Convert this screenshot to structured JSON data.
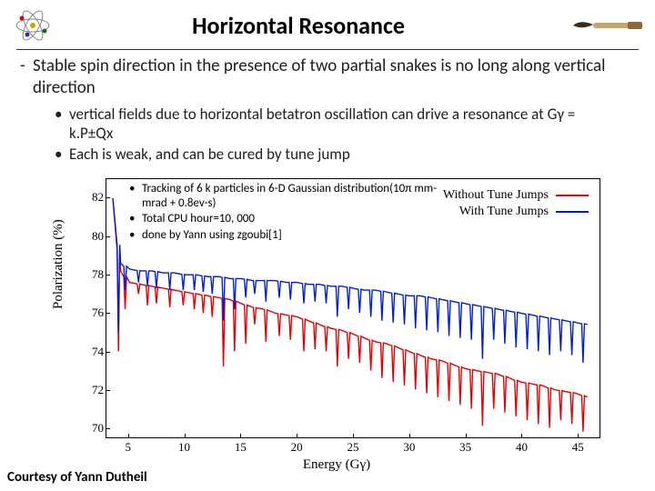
{
  "title": "Horizontal Resonance",
  "main_bullet": "Stable spin direction in the presence of two partial snakes is no long along vertical direction",
  "sub_bullets": [
    "vertical fields due to horizontal betatron oscillation can drive a resonance at Gγ = k.P±Qx",
    "Each is weak, and can be cured by tune jump"
  ],
  "notes": [
    "Tracking of 6 k particles in 6-D Gaussian distribution(10π mm-mrad + 0.8ev-s)",
    "Total CPU hour=10, 000",
    "done by Yann using zgoubi[1]"
  ],
  "courtesy": "Courtesy of Yann Dutheil",
  "chart": {
    "type": "line",
    "background_color": "#ffffff",
    "border_color": "#000000",
    "xlabel": "Energy (Gγ)",
    "ylabel": "Polarization (%)",
    "xlim": [
      3,
      47
    ],
    "ylim": [
      69.5,
      83
    ],
    "xticks": [
      5,
      10,
      15,
      20,
      25,
      30,
      35,
      40,
      45
    ],
    "yticks": [
      70,
      72,
      74,
      76,
      78,
      80,
      82
    ],
    "label_fontsize": 15,
    "tick_fontsize": 13,
    "font_family": "Times New Roman",
    "legend": {
      "position": "top-right",
      "items": [
        {
          "label": "Without Tune Jumps",
          "color": "#e60000"
        },
        {
          "label": "With Tune Jumps",
          "color": "#0020d0"
        }
      ]
    },
    "series": [
      {
        "name": "without",
        "color": "#e60000",
        "line_width": 1.4,
        "baseline": [
          [
            3.5,
            82.0
          ],
          [
            4.2,
            78.2
          ],
          [
            5.0,
            77.6
          ],
          [
            6.0,
            77.5
          ],
          [
            7.0,
            77.4
          ],
          [
            8.0,
            77.3
          ],
          [
            9.0,
            77.2
          ],
          [
            10.0,
            77.1
          ],
          [
            11.0,
            77.0
          ],
          [
            12.0,
            76.9
          ],
          [
            13.0,
            76.8
          ],
          [
            14.0,
            76.7
          ],
          [
            15.0,
            76.5
          ],
          [
            16.0,
            76.3
          ],
          [
            17.0,
            76.2
          ],
          [
            18.0,
            76.0
          ],
          [
            19.0,
            75.9
          ],
          [
            20.0,
            75.8
          ],
          [
            21.0,
            75.6
          ],
          [
            22.0,
            75.4
          ],
          [
            23.0,
            75.2
          ],
          [
            24.0,
            75.1
          ],
          [
            25.0,
            74.9
          ],
          [
            26.0,
            74.7
          ],
          [
            27.0,
            74.5
          ],
          [
            28.0,
            74.4
          ],
          [
            29.0,
            74.2
          ],
          [
            30.0,
            74.0
          ],
          [
            31.0,
            73.8
          ],
          [
            32.0,
            73.6
          ],
          [
            33.0,
            73.5
          ],
          [
            34.0,
            73.3
          ],
          [
            35.0,
            73.1
          ],
          [
            36.0,
            73.0
          ],
          [
            37.0,
            72.9
          ],
          [
            38.0,
            72.8
          ],
          [
            39.0,
            72.6
          ],
          [
            40.0,
            72.4
          ],
          [
            41.0,
            72.3
          ],
          [
            42.0,
            72.2
          ],
          [
            43.0,
            72.0
          ],
          [
            44.0,
            71.9
          ],
          [
            45.0,
            71.8
          ],
          [
            46.0,
            71.6
          ]
        ],
        "dips": [
          [
            4.0,
            74.0
          ],
          [
            4.6,
            76.2
          ],
          [
            5.8,
            77.0
          ],
          [
            6.6,
            76.4
          ],
          [
            7.4,
            76.5
          ],
          [
            8.6,
            76.3
          ],
          [
            9.8,
            76.4
          ],
          [
            10.8,
            76.2
          ],
          [
            11.6,
            76.0
          ],
          [
            12.4,
            75.8
          ],
          [
            13.4,
            73.2
          ],
          [
            14.4,
            74.0
          ],
          [
            15.4,
            74.4
          ],
          [
            16.2,
            75.4
          ],
          [
            17.2,
            74.5
          ],
          [
            18.4,
            74.8
          ],
          [
            19.4,
            74.6
          ],
          [
            20.6,
            74.0
          ],
          [
            21.6,
            74.1
          ],
          [
            22.6,
            74.0
          ],
          [
            23.6,
            73.2
          ],
          [
            24.6,
            73.6
          ],
          [
            25.6,
            73.4
          ],
          [
            26.6,
            73.0
          ],
          [
            27.6,
            72.6
          ],
          [
            28.6,
            72.4
          ],
          [
            29.6,
            72.2
          ],
          [
            30.6,
            72.0
          ],
          [
            31.6,
            71.8
          ],
          [
            32.6,
            71.6
          ],
          [
            33.6,
            71.4
          ],
          [
            34.6,
            71.2
          ],
          [
            35.6,
            71.0
          ],
          [
            36.6,
            70.1
          ],
          [
            37.6,
            71.0
          ],
          [
            38.6,
            70.8
          ],
          [
            39.6,
            70.6
          ],
          [
            40.6,
            70.4
          ],
          [
            41.6,
            70.2
          ],
          [
            42.6,
            70.0
          ],
          [
            43.6,
            70.4
          ],
          [
            44.6,
            70.2
          ],
          [
            45.6,
            69.8
          ]
        ]
      },
      {
        "name": "with",
        "color": "#0020d0",
        "line_width": 1.4,
        "baseline": [
          [
            3.5,
            82.0
          ],
          [
            4.2,
            78.6
          ],
          [
            5.0,
            78.3
          ],
          [
            6.0,
            78.2
          ],
          [
            7.0,
            78.2
          ],
          [
            8.0,
            78.1
          ],
          [
            9.0,
            78.1
          ],
          [
            10.0,
            78.0
          ],
          [
            11.0,
            78.0
          ],
          [
            12.0,
            77.9
          ],
          [
            13.0,
            77.9
          ],
          [
            14.0,
            77.8
          ],
          [
            15.0,
            77.8
          ],
          [
            16.0,
            77.7
          ],
          [
            17.0,
            77.7
          ],
          [
            18.0,
            77.7
          ],
          [
            19.0,
            77.6
          ],
          [
            20.0,
            77.6
          ],
          [
            21.0,
            77.5
          ],
          [
            22.0,
            77.5
          ],
          [
            23.0,
            77.4
          ],
          [
            24.0,
            77.4
          ],
          [
            25.0,
            77.3
          ],
          [
            26.0,
            77.2
          ],
          [
            27.0,
            77.2
          ],
          [
            28.0,
            77.1
          ],
          [
            29.0,
            77.0
          ],
          [
            30.0,
            76.9
          ],
          [
            31.0,
            76.9
          ],
          [
            32.0,
            76.8
          ],
          [
            33.0,
            76.7
          ],
          [
            34.0,
            76.6
          ],
          [
            35.0,
            76.5
          ],
          [
            36.0,
            76.4
          ],
          [
            37.0,
            76.3
          ],
          [
            38.0,
            76.2
          ],
          [
            39.0,
            76.1
          ],
          [
            40.0,
            76.0
          ],
          [
            41.0,
            75.9
          ],
          [
            42.0,
            75.8
          ],
          [
            43.0,
            75.7
          ],
          [
            44.0,
            75.6
          ],
          [
            45.0,
            75.5
          ],
          [
            46.0,
            75.4
          ]
        ],
        "dips": [
          [
            4.0,
            75.0
          ],
          [
            4.6,
            77.2
          ],
          [
            5.8,
            77.6
          ],
          [
            6.6,
            77.4
          ],
          [
            7.4,
            77.3
          ],
          [
            8.6,
            77.2
          ],
          [
            9.8,
            77.2
          ],
          [
            10.8,
            77.2
          ],
          [
            11.6,
            77.1
          ],
          [
            12.4,
            77.0
          ],
          [
            13.4,
            75.6
          ],
          [
            14.4,
            76.2
          ],
          [
            15.4,
            76.8
          ],
          [
            16.2,
            77.0
          ],
          [
            17.2,
            76.6
          ],
          [
            18.4,
            76.8
          ],
          [
            19.4,
            76.7
          ],
          [
            20.6,
            76.5
          ],
          [
            21.6,
            76.6
          ],
          [
            22.6,
            76.5
          ],
          [
            23.6,
            75.8
          ],
          [
            24.6,
            76.2
          ],
          [
            25.6,
            76.0
          ],
          [
            26.6,
            75.8
          ],
          [
            27.6,
            75.6
          ],
          [
            28.6,
            75.5
          ],
          [
            29.6,
            75.4
          ],
          [
            30.6,
            75.2
          ],
          [
            31.6,
            75.1
          ],
          [
            32.6,
            75.0
          ],
          [
            33.6,
            74.8
          ],
          [
            34.6,
            74.7
          ],
          [
            35.6,
            74.6
          ],
          [
            36.6,
            73.6
          ],
          [
            37.6,
            74.6
          ],
          [
            38.6,
            74.4
          ],
          [
            39.6,
            74.2
          ],
          [
            40.6,
            74.1
          ],
          [
            41.6,
            74.0
          ],
          [
            42.6,
            73.8
          ],
          [
            43.6,
            74.0
          ],
          [
            44.6,
            73.8
          ],
          [
            45.6,
            73.4
          ]
        ]
      }
    ]
  }
}
